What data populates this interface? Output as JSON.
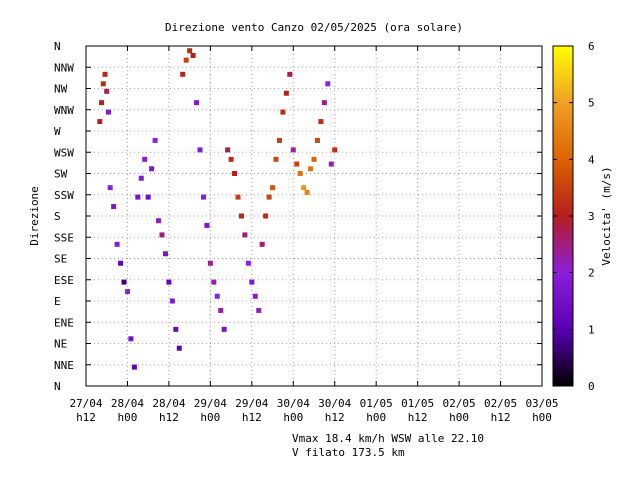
{
  "chart_data": {
    "type": "scatter",
    "title": "Direzione vento Canzo 02/05/2025 (ora solare)",
    "ylabel": "Direzione",
    "colorbar_label": "Velocita' (m/s)",
    "colorbar_range": [
      0,
      6
    ],
    "colorbar_ticks": [
      "0",
      "1",
      "2",
      "3",
      "4",
      "5",
      "6"
    ],
    "x_ticks": [
      {
        "line1": "27/04",
        "line2": "h12"
      },
      {
        "line1": "28/04",
        "line2": "h00"
      },
      {
        "line1": "28/04",
        "line2": "h12"
      },
      {
        "line1": "29/04",
        "line2": "h00"
      },
      {
        "line1": "29/04",
        "line2": "h12"
      },
      {
        "line1": "30/04",
        "line2": "h00"
      },
      {
        "line1": "30/04",
        "line2": "h12"
      },
      {
        "line1": "01/05",
        "line2": "h00"
      },
      {
        "line1": "01/05",
        "line2": "h12"
      },
      {
        "line1": "02/05",
        "line2": "h00"
      },
      {
        "line1": "02/05",
        "line2": "h12"
      },
      {
        "line1": "03/05",
        "line2": "h00"
      }
    ],
    "xlim": [
      "27/04 h12",
      "03/05 h00"
    ],
    "y_ticks": [
      "N",
      "NNE",
      "NE",
      "ENE",
      "E",
      "ESE",
      "SE",
      "SSE",
      "S",
      "SSW",
      "SW",
      "WSW",
      "W",
      "WNW",
      "NW",
      "NNW",
      "N"
    ],
    "ylim": [
      0,
      360
    ],
    "grid": true,
    "colormap_colors": [
      "#000000",
      "#5a00b4",
      "#8c1edc",
      "#b41e1e",
      "#dc6400",
      "#f0a028",
      "#ffff00"
    ],
    "note1": "Vmax 18.4 km/h WSW alle 22.10",
    "note2": "V filato 173.5 km",
    "series": [
      {
        "points": [
          [
            4,
            280,
            2.9
          ],
          [
            4.5,
            300,
            3.0
          ],
          [
            5,
            320,
            3.2
          ],
          [
            5.5,
            330,
            3.1
          ],
          [
            6,
            312,
            2.7
          ],
          [
            6.5,
            290,
            1.8
          ],
          [
            7,
            210,
            2.0
          ],
          [
            8,
            190,
            1.7
          ],
          [
            9,
            150,
            1.9
          ],
          [
            10,
            130,
            1.2
          ],
          [
            11,
            110,
            0.7
          ],
          [
            12,
            100,
            2.0
          ],
          [
            13,
            50,
            1.5
          ],
          [
            14,
            20,
            1.1
          ],
          [
            15,
            200,
            1.6
          ],
          [
            16,
            220,
            1.8
          ],
          [
            17,
            240,
            1.9
          ],
          [
            18,
            200,
            1.4
          ],
          [
            19,
            230,
            1.7
          ],
          [
            20,
            260,
            2.0
          ],
          [
            21,
            175,
            2.2
          ],
          [
            22,
            160,
            2.5
          ],
          [
            23,
            140,
            1.6
          ],
          [
            24,
            110,
            1.2
          ],
          [
            25,
            90,
            1.8
          ],
          [
            26,
            60,
            1.3
          ],
          [
            27,
            40,
            1.0
          ],
          [
            28,
            330,
            3.1
          ],
          [
            29,
            345,
            3.5
          ],
          [
            30,
            355,
            3.2
          ],
          [
            31,
            350,
            3.0
          ],
          [
            32,
            300,
            1.8
          ],
          [
            33,
            250,
            1.9
          ],
          [
            34,
            200,
            2.1
          ],
          [
            35,
            170,
            1.7
          ],
          [
            36,
            130,
            2.4
          ],
          [
            37,
            110,
            2.2
          ],
          [
            38,
            95,
            2.0
          ],
          [
            39,
            80,
            2.3
          ],
          [
            40,
            60,
            1.6
          ],
          [
            41,
            250,
            2.8
          ],
          [
            42,
            240,
            3.2
          ],
          [
            43,
            225,
            3.0
          ],
          [
            44,
            200,
            3.4
          ],
          [
            45,
            180,
            3.1
          ],
          [
            46,
            160,
            2.5
          ],
          [
            47,
            130,
            2.0
          ],
          [
            48,
            110,
            1.8
          ],
          [
            49,
            95,
            1.9
          ],
          [
            50,
            80,
            2.2
          ],
          [
            51,
            150,
            2.6
          ],
          [
            52,
            180,
            3.1
          ],
          [
            53,
            200,
            3.5
          ],
          [
            54,
            210,
            3.8
          ],
          [
            55,
            240,
            3.6
          ],
          [
            56,
            260,
            3.4
          ],
          [
            57,
            290,
            3.2
          ],
          [
            58,
            310,
            3.0
          ],
          [
            59,
            330,
            2.7
          ],
          [
            60,
            250,
            2.3
          ],
          [
            61,
            235,
            3.5
          ],
          [
            62,
            225,
            4.2
          ],
          [
            63,
            210,
            4.8
          ],
          [
            64,
            205,
            4.5
          ],
          [
            65,
            230,
            4.3
          ],
          [
            66,
            240,
            4.0
          ],
          [
            67,
            260,
            3.6
          ],
          [
            68,
            280,
            3.2
          ],
          [
            69,
            300,
            2.4
          ],
          [
            70,
            320,
            2.0
          ],
          [
            71,
            235,
            2.2
          ],
          [
            72,
            250,
            3.2
          ]
        ]
      }
    ]
  }
}
